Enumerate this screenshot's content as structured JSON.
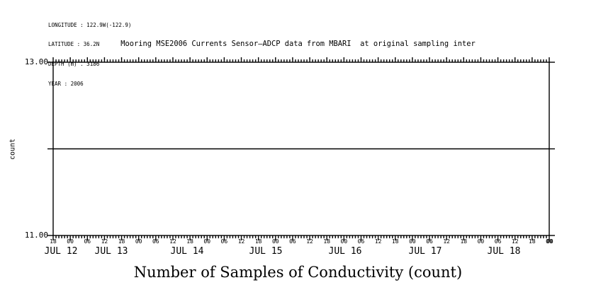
{
  "header": {
    "longitude": "LONGITUDE : 122.9W(-122.9)",
    "latitude": "LATITUDE : 36.2N",
    "depth": "DEPTH (m) . 3186",
    "year": "YEAR : 2006"
  },
  "title": "Mooring MSE2006 Currents Sensor–ADCP data from MBARI  at original sampling inter",
  "colors": {
    "foreground": "#000000",
    "background": "#ffffff"
  },
  "chart_data": {
    "type": "line",
    "title": "Mooring MSE2006 Currents Sensor–ADCP data from MBARI  at original sampling inter",
    "xlabel": "Number of Samples of Conductivity (count)",
    "ylabel": "count",
    "ylim": [
      11,
      13
    ],
    "ytick_labels": [
      "13.00",
      "11.00"
    ],
    "ytick_values": [
      13,
      12,
      11
    ],
    "x_start": "JUL 11 18:00",
    "x_end": "JUL 19 00:00",
    "total_hours": 174,
    "minor_tick_hours": 1,
    "major_tick_hours": 6,
    "hour_labels": [
      "18",
      "00",
      "06",
      "12",
      "18",
      "00",
      "06",
      "12",
      "18",
      "00",
      "06",
      "12",
      "18",
      "00",
      "06",
      "12",
      "18",
      "00",
      "06",
      "12",
      "18",
      "00",
      "06",
      "12",
      "18",
      "00",
      "06",
      "12",
      "18",
      "00"
    ],
    "day_labels": [
      "JUL 12",
      "JUL 13",
      "JUL 14",
      "JUL 15",
      "JUL 16",
      "JUL 17",
      "JUL 18"
    ],
    "series": [
      {
        "name": "Number of Samples of Conductivity",
        "y_constant": 12,
        "description": "constant flat line at y=12 spanning the entire time range"
      }
    ],
    "grid": false,
    "legend": false,
    "frame": "full box with hourly ticks on top and bottom edges, y ticks on left and right edges"
  }
}
